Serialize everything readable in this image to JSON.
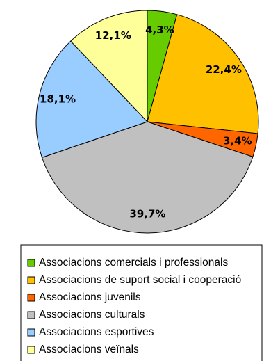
{
  "chart_data": {
    "type": "pie",
    "categories": [
      "Associacions comercials i professionals",
      "Associacions de suport social i cooperació",
      "Associacions juvenils",
      "Associacions culturals",
      "Associacions esportives",
      "Associacions veïnals"
    ],
    "values": [
      4.3,
      22.4,
      3.4,
      39.7,
      18.1,
      12.1
    ],
    "value_labels": [
      "4,3%",
      "22,4%",
      "3,4%",
      "39,7%",
      "18,1%",
      "12,1%"
    ],
    "colors": [
      "#66CC00",
      "#FFC000",
      "#FF6600",
      "#C0C0C0",
      "#99CCFF",
      "#FFFF99"
    ],
    "legend": "bottom"
  }
}
